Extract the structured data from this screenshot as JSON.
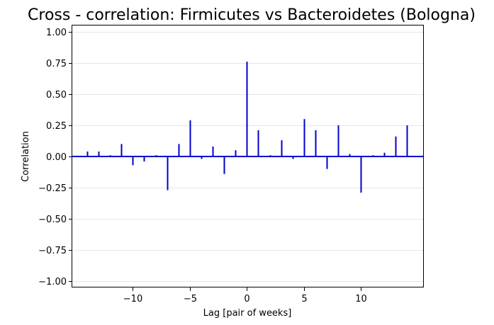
{
  "chart_data": {
    "type": "bar",
    "title": "Cross - correlation: Firmicutes vs Bacteroidetes (Bologna)",
    "xlabel": "Lag [pair of weeks]",
    "ylabel": "Correlation",
    "xlim": [
      -15.3,
      15.5
    ],
    "ylim": [
      -1.05,
      1.05
    ],
    "x_ticks": [
      -10,
      -5,
      0,
      5,
      10
    ],
    "x_tick_labels": [
      "−10",
      "−5",
      "0",
      "5",
      "10"
    ],
    "y_ticks": [
      1.0,
      0.75,
      0.5,
      0.25,
      0.0,
      -0.25,
      -0.5,
      -0.75,
      -1.0
    ],
    "y_tick_labels": [
      "1.00",
      "0.75",
      "0.50",
      "0.25",
      "0.00",
      "−0.25",
      "−0.50",
      "−0.75",
      "−1.00"
    ],
    "grid": "horizontal",
    "series": [
      {
        "x": [
          -14,
          -13,
          -12,
          -11,
          -10,
          -9,
          -8,
          -7,
          -6,
          -5,
          -4,
          -3,
          -2,
          -1,
          0,
          1,
          2,
          3,
          4,
          5,
          6,
          7,
          8,
          9,
          10,
          11,
          12,
          13,
          14
        ],
        "values": [
          0.04,
          0.04,
          0.01,
          0.1,
          -0.07,
          -0.04,
          0.01,
          -0.27,
          0.1,
          0.29,
          -0.02,
          0.08,
          -0.14,
          0.05,
          0.76,
          0.21,
          0.01,
          0.13,
          -0.02,
          0.3,
          0.21,
          -0.1,
          0.25,
          0.02,
          -0.29,
          0.01,
          0.03,
          0.16,
          0.25
        ]
      }
    ],
    "colors": {
      "bar": "#0000cd",
      "zero_line": "#0000cd",
      "grid": "#e6e6e6",
      "frame": "#000000"
    }
  }
}
